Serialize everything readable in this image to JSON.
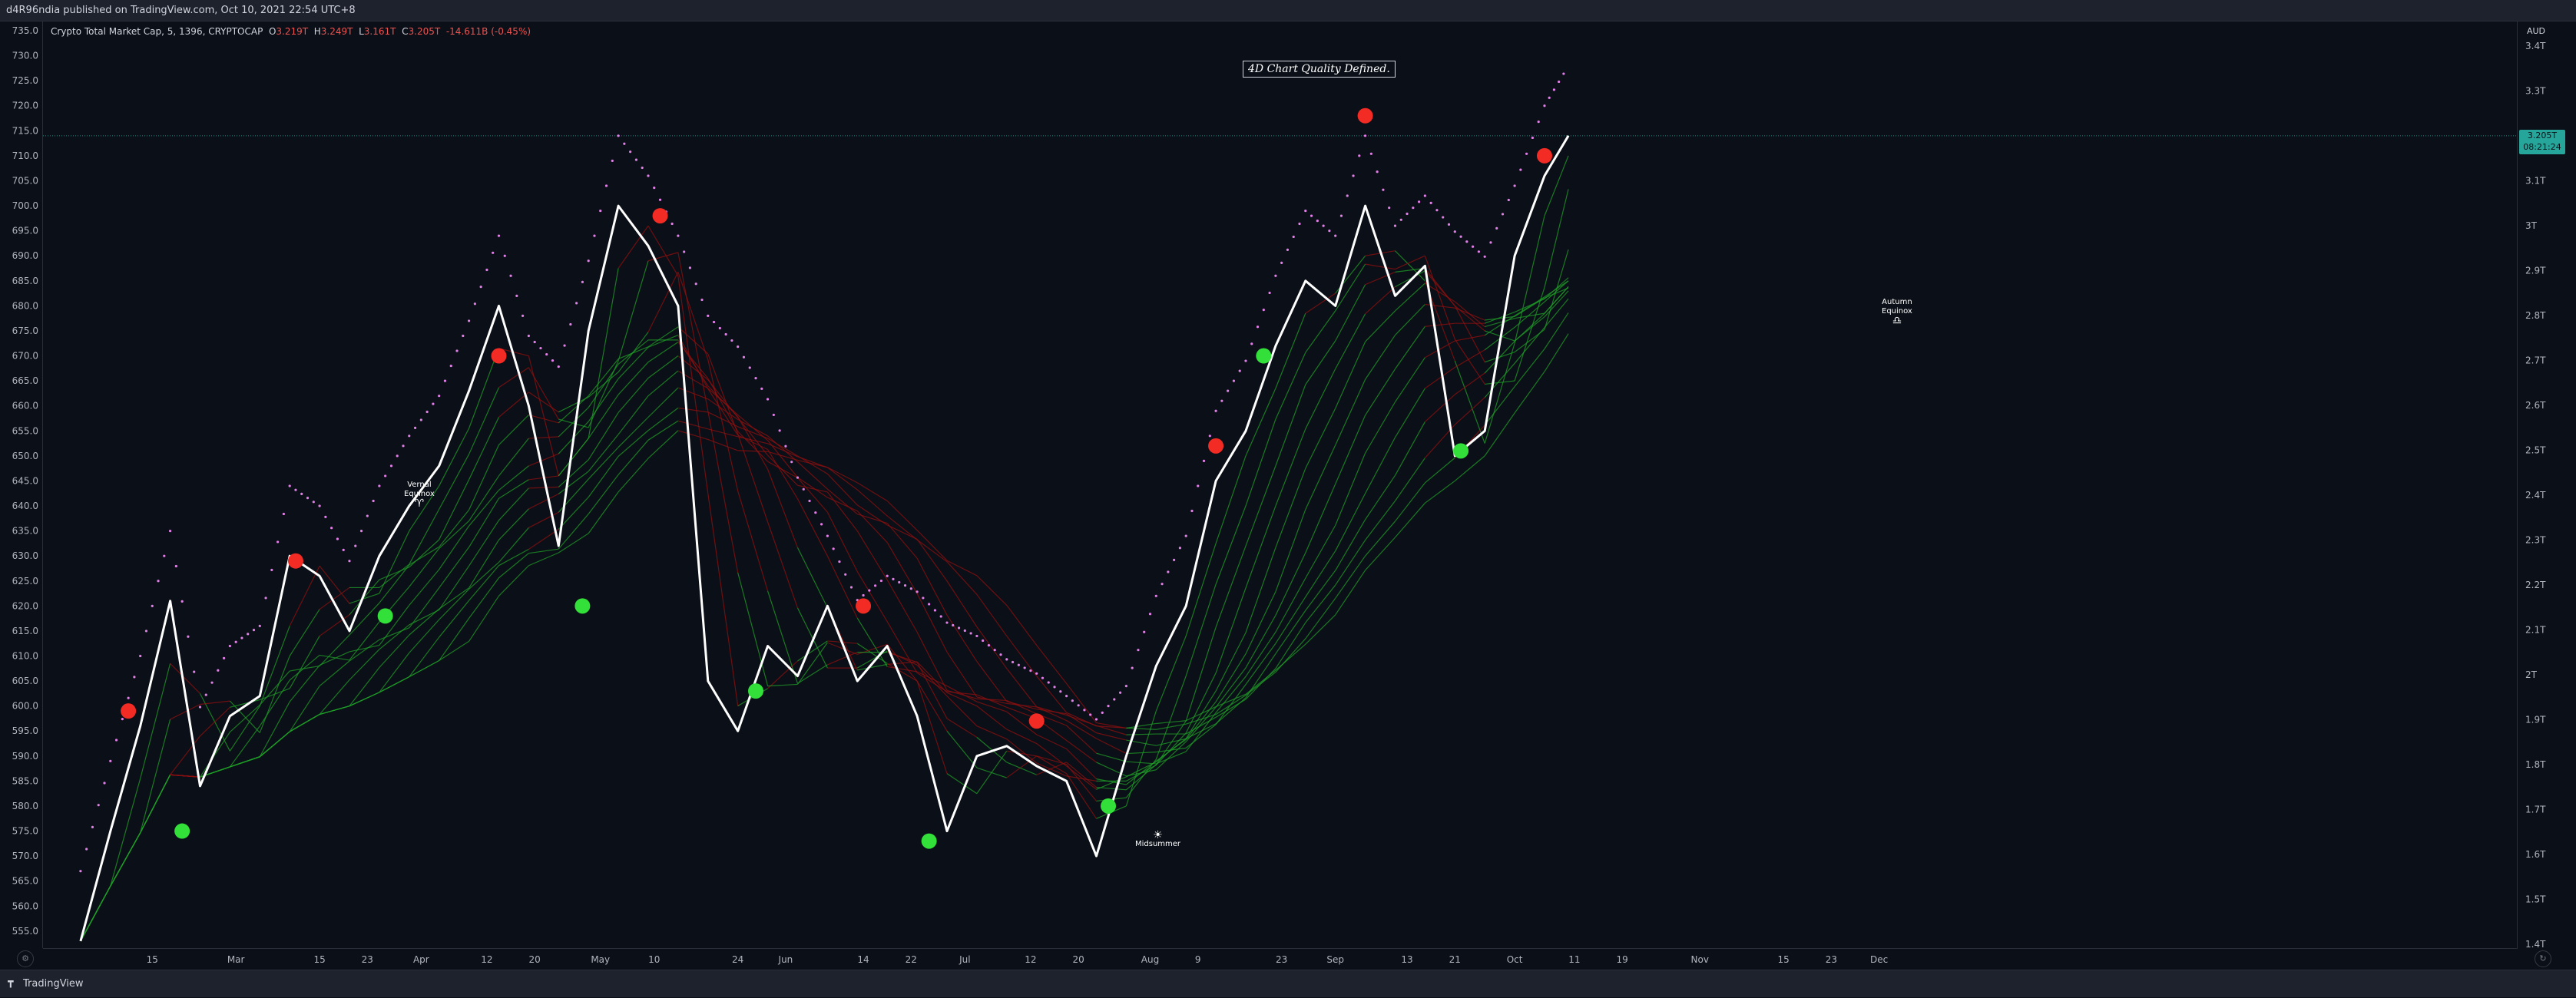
{
  "header": {
    "published_text": "d4R96ndia published on TradingView.com, Oct 10, 2021 22:54 UTC+8"
  },
  "legend": {
    "symbol": "Crypto Total Market Cap, 5, 1396, CRYPTOCAP",
    "open_label": "O",
    "open_value": "3.219T",
    "high_label": "H",
    "high_value": "3.249T",
    "low_label": "L",
    "low_value": "3.161T",
    "close_label": "C",
    "close_value": "3.205T",
    "change": "-14.611B (-0.45%)"
  },
  "banner_text": "4D Chart Quality Defined.",
  "price_tag": {
    "value": "3.205T",
    "countdown": "08:21:24"
  },
  "currency_label": "AUD",
  "footer": {
    "brand": "TradingView"
  },
  "annotations": [
    {
      "key": "vernal",
      "label_line1": "Vernal",
      "label_line2": "Equinox",
      "icon": "♈"
    },
    {
      "key": "midsummer",
      "label_line1": "Midsummer",
      "label_line2": "",
      "icon": "☀"
    },
    {
      "key": "autumn",
      "label_line1": "Autumn",
      "label_line2": "Equinox",
      "icon": "♎"
    }
  ],
  "chart_data": {
    "type": "line",
    "title": "",
    "left_axis": {
      "ticks": [
        "735.0",
        "730.0",
        "725.0",
        "720.0",
        "715.0",
        "710.0",
        "705.0",
        "700.0",
        "695.0",
        "690.0",
        "685.0",
        "680.0",
        "675.0",
        "670.0",
        "665.0",
        "660.0",
        "655.0",
        "650.0",
        "645.0",
        "640.0",
        "635.0",
        "630.0",
        "625.0",
        "620.0",
        "615.0",
        "610.0",
        "605.0",
        "600.0",
        "595.0",
        "590.0",
        "585.0",
        "580.0",
        "575.0",
        "570.0",
        "565.0",
        "560.0",
        "555.0"
      ],
      "range": [
        551,
        737
      ]
    },
    "right_axis": {
      "ticks": [
        "3.4T",
        "3.3T",
        "3.2T",
        "3.1T",
        "3T",
        "2.9T",
        "2.8T",
        "2.7T",
        "2.6T",
        "2.5T",
        "2.4T",
        "2.3T",
        "2.2T",
        "2.1T",
        "2T",
        "1.9T",
        "1.8T",
        "1.7T",
        "1.6T",
        "1.5T",
        "1.4T"
      ],
      "current_value": 3.205
    },
    "x_axis": {
      "ticks": [
        "15",
        "Mar",
        "15",
        "23",
        "Apr",
        "12",
        "20",
        "May",
        "10",
        "24",
        "Jun",
        "14",
        "22",
        "Jul",
        "12",
        "20",
        "Aug",
        "9",
        "23",
        "Sep",
        "13",
        "21",
        "Oct",
        "11",
        "19",
        "Nov",
        "15",
        "23",
        "Dec"
      ]
    },
    "series": [
      {
        "name": "Crypto Total Market Cap",
        "color": "#ffffff",
        "x": [
          "Feb 3",
          "Feb 8",
          "Feb 13",
          "Feb 18",
          "Feb 23",
          "Feb 28",
          "Mar 5",
          "Mar 10",
          "Mar 15",
          "Mar 20",
          "Mar 25",
          "Mar 30",
          "Apr 4",
          "Apr 9",
          "Apr 14",
          "Apr 19",
          "Apr 24",
          "Apr 29",
          "May 4",
          "May 9",
          "May 14",
          "May 19",
          "May 24",
          "May 29",
          "Jun 3",
          "Jun 8",
          "Jun 13",
          "Jun 18",
          "Jun 23",
          "Jun 28",
          "Jul 3",
          "Jul 8",
          "Jul 13",
          "Jul 18",
          "Jul 23",
          "Jul 28",
          "Aug 2",
          "Aug 7",
          "Aug 12",
          "Aug 17",
          "Aug 22",
          "Aug 27",
          "Sep 1",
          "Sep 6",
          "Sep 11",
          "Sep 16",
          "Sep 21",
          "Sep 26",
          "Oct 1",
          "Oct 6",
          "Oct 10"
        ],
        "values": [
          553,
          575,
          596,
          621,
          584,
          598,
          602,
          630,
          626,
          615,
          630,
          640,
          648,
          663,
          680,
          660,
          632,
          675,
          700,
          692,
          680,
          605,
          595,
          612,
          606,
          620,
          605,
          612,
          598,
          575,
          590,
          592,
          588,
          585,
          570,
          590,
          608,
          620,
          645,
          655,
          672,
          685,
          680,
          700,
          682,
          688,
          650,
          655,
          690,
          706,
          714
        ]
      }
    ],
    "signals_bullish": [
      {
        "x": "Feb 20",
        "y": 575
      },
      {
        "x": "Mar 26",
        "y": 618
      },
      {
        "x": "Apr 28",
        "y": 620
      },
      {
        "x": "May 27",
        "y": 603
      },
      {
        "x": "Jun 25",
        "y": 573
      },
      {
        "x": "Jul 25",
        "y": 580
      },
      {
        "x": "Aug 20",
        "y": 670
      },
      {
        "x": "Sep 22",
        "y": 651
      }
    ],
    "signals_bearish": [
      {
        "x": "Feb 11",
        "y": 599
      },
      {
        "x": "Mar 11",
        "y": 629
      },
      {
        "x": "Apr 14",
        "y": 670
      },
      {
        "x": "May 11",
        "y": 698
      },
      {
        "x": "Jun 14",
        "y": 620
      },
      {
        "x": "Jul 13",
        "y": 597
      },
      {
        "x": "Aug 12",
        "y": 652
      },
      {
        "x": "Sep 6",
        "y": 718
      },
      {
        "x": "Oct 6",
        "y": 710
      }
    ],
    "grid": false,
    "colors": {
      "bullish": "#33e03a",
      "bearish": "#f22b24",
      "ribbon_up": "#1f9e28",
      "ribbon_down": "#8f1010",
      "envelope": "#e27fe8",
      "price_line": "#26a69a"
    }
  }
}
